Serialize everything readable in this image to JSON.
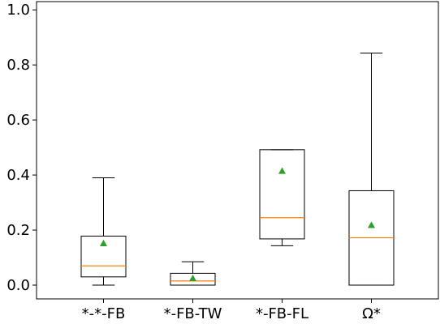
{
  "chart_data": {
    "type": "box",
    "categories": [
      "*-*-FB",
      "*-FB-TW",
      "*-FB-FL",
      "Ω*"
    ],
    "yticks": [
      "0.0",
      "0.2",
      "0.4",
      "0.6",
      "0.8",
      "1.0"
    ],
    "ylim": [
      -0.05,
      1.03
    ],
    "grid": false,
    "boxes": [
      {
        "whislo": 0.0,
        "q1": 0.03,
        "med": 0.07,
        "q3": 0.178,
        "whishi": 0.39,
        "mean": 0.152
      },
      {
        "whislo": 0.0,
        "q1": 0.0,
        "med": 0.015,
        "q3": 0.043,
        "whishi": 0.085,
        "mean": 0.025
      },
      {
        "whislo": 0.143,
        "q1": 0.168,
        "med": 0.245,
        "q3": 0.492,
        "whishi": 0.492,
        "mean": 0.415
      },
      {
        "whislo": 0.0,
        "q1": 0.0,
        "med": 0.172,
        "q3": 0.343,
        "whishi": 0.843,
        "mean": 0.218
      }
    ],
    "colors": {
      "box": "#000000",
      "median": "#ff7f0e",
      "mean": "#2ca02c"
    }
  }
}
